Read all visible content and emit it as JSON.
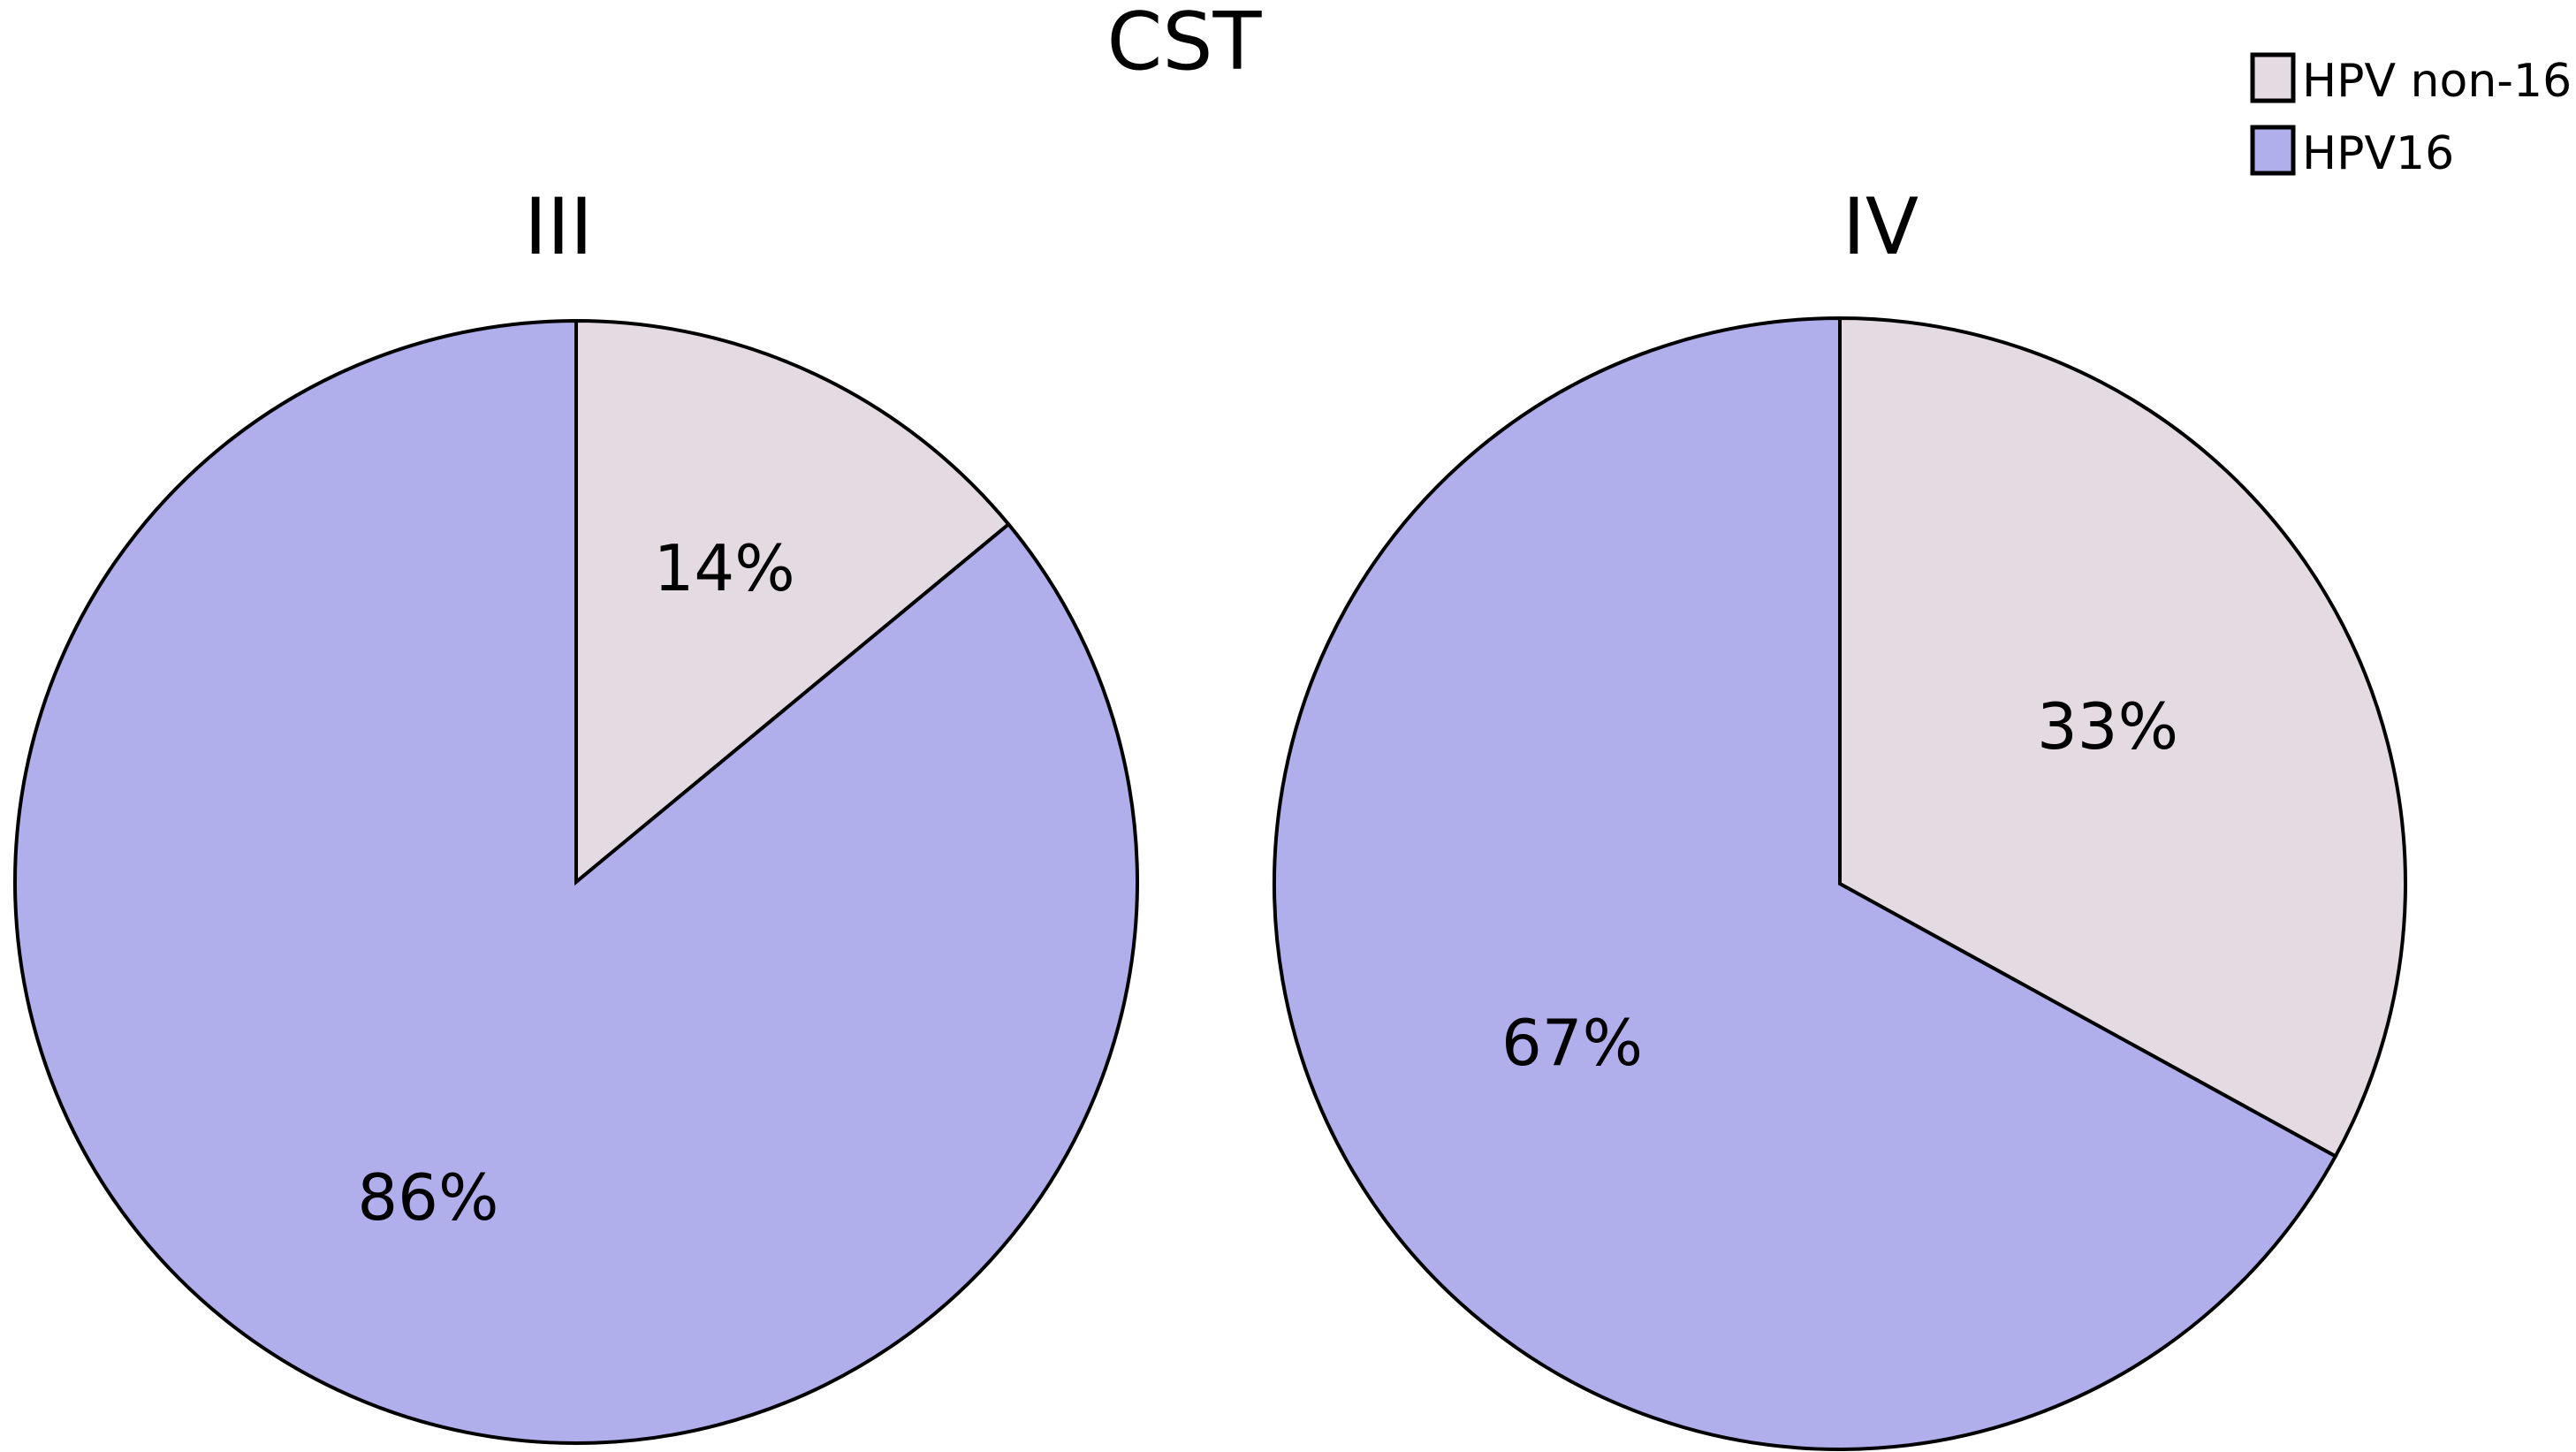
{
  "chart_data": {
    "type": "pie",
    "title": "CST",
    "legend": {
      "placement": "top-right",
      "entries": [
        {
          "label": "HPV non-16",
          "color": "#e4dbe2"
        },
        {
          "label": "HPV16",
          "color": "#b0aeeb"
        }
      ]
    },
    "pies": [
      {
        "title": "III",
        "slices": [
          {
            "label": "HPV non-16",
            "value": 14,
            "display": "14%",
            "color": "#e4dbe2"
          },
          {
            "label": "HPV16",
            "value": 86,
            "display": "86%",
            "color": "#b0aeeb"
          }
        ]
      },
      {
        "title": "IV",
        "slices": [
          {
            "label": "HPV non-16",
            "value": 33,
            "display": "33%",
            "color": "#e4dbe2"
          },
          {
            "label": "HPV16",
            "value": 67,
            "display": "67%",
            "color": "#b0aeeb"
          }
        ]
      }
    ]
  }
}
